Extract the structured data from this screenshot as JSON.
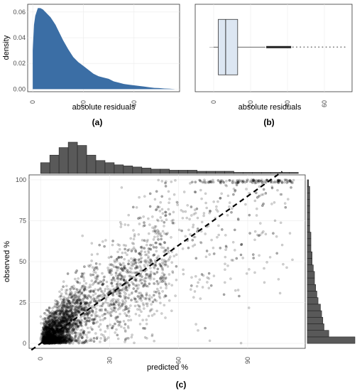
{
  "panel_labels": {
    "a": "(a)",
    "b": "(b)",
    "c": "(c)"
  },
  "colors": {
    "density_fill": "#3b6ea5",
    "box_fill": "#dce6f2",
    "hist_fill": "#595959",
    "point": "#000000"
  },
  "chart_data": [
    {
      "id": "a",
      "type": "area",
      "xlabel": "absolute residuals",
      "ylabel": "density",
      "xlim": [
        -2,
        58
      ],
      "ylim": [
        -0.002,
        0.066
      ],
      "x_ticks": [
        0,
        20,
        40,
        60
      ],
      "x_tick_labels": [
        "0",
        "20",
        "40",
        "60"
      ],
      "y_ticks": [
        0,
        0.02,
        0.04,
        0.06
      ],
      "y_tick_labels": [
        "0.00",
        "0.02",
        "0.04",
        "0.06"
      ],
      "grid": true,
      "x": [
        0,
        0.5,
        1,
        2,
        3,
        4,
        5,
        6,
        7,
        8,
        9,
        10,
        12,
        14,
        16,
        18,
        20,
        22,
        24,
        26,
        28,
        30,
        32,
        34,
        36,
        38,
        40,
        42,
        44,
        46,
        48,
        50,
        52,
        54,
        56
      ],
      "y": [
        0.03,
        0.05,
        0.057,
        0.063,
        0.063,
        0.062,
        0.06,
        0.058,
        0.056,
        0.053,
        0.05,
        0.046,
        0.038,
        0.031,
        0.025,
        0.021,
        0.018,
        0.015,
        0.012,
        0.01,
        0.009,
        0.008,
        0.006,
        0.005,
        0.004,
        0.0035,
        0.003,
        0.0025,
        0.002,
        0.0015,
        0.001,
        0.0008,
        0.0005,
        0.0003,
        0.0001
      ]
    },
    {
      "id": "b",
      "type": "box",
      "xlabel": "absolute residuals",
      "xlim": [
        -10,
        75
      ],
      "x_ticks": [
        0,
        20,
        40,
        60
      ],
      "x_tick_labels": [
        "0",
        "20",
        "40",
        "60"
      ],
      "grid": true,
      "min": 0,
      "q1": 2.5,
      "median": 6.5,
      "q3": 13,
      "whisker_high": 28,
      "max": 72,
      "outliers_dense": [
        28.5,
        42
      ],
      "outliers_sparse": [
        43,
        45,
        47,
        49,
        51,
        53,
        55,
        57,
        59,
        61,
        63,
        65,
        67,
        69,
        71
      ]
    },
    {
      "id": "c",
      "type": "scatter",
      "xlabel": "predicted %",
      "ylabel": "observed %",
      "xlim": [
        -5,
        115
      ],
      "ylim": [
        -3,
        103
      ],
      "x_ticks": [
        0,
        30,
        60,
        90
      ],
      "x_tick_labels": [
        "0",
        "30",
        "60",
        "90"
      ],
      "y_ticks": [
        0,
        25,
        50,
        75,
        100
      ],
      "y_tick_labels": [
        "0",
        "25",
        "50",
        "75",
        "100"
      ],
      "grid": true,
      "reference_line": {
        "slope": 1,
        "intercept": 0,
        "style": "dashed"
      },
      "top_histogram": {
        "bin_width": 4,
        "bins_start": 0,
        "counts": [
          10,
          17,
          24,
          29,
          26,
          17,
          12,
          10,
          8,
          7,
          6,
          5,
          4,
          4,
          3,
          3,
          3,
          2,
          2,
          2,
          2,
          1,
          1,
          1,
          1,
          1,
          1,
          1
        ]
      },
      "right_histogram": {
        "bin_width": 4,
        "bins_start": 0,
        "counts": [
          40,
          18,
          14,
          13,
          12,
          11,
          9,
          8,
          7,
          6,
          6,
          5,
          4,
          4,
          3,
          3,
          3,
          2,
          2,
          2,
          2,
          2,
          2,
          2,
          1
        ]
      },
      "points_generated_count": 4200
    }
  ]
}
